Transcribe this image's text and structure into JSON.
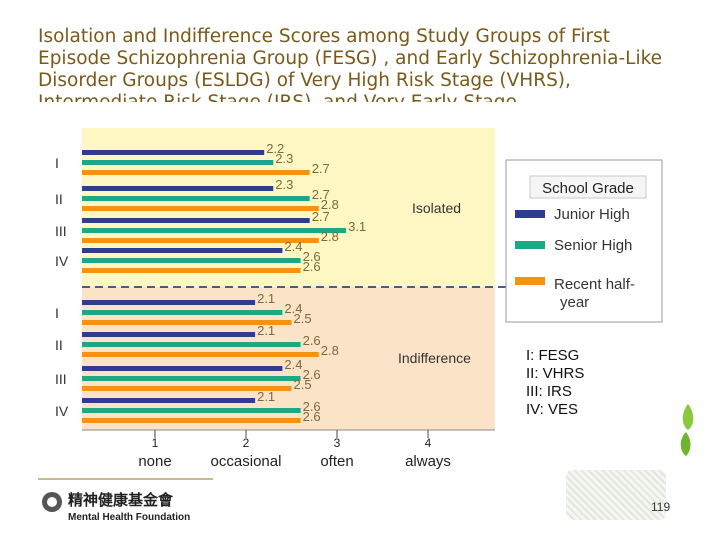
{
  "title": {
    "text": "Isolation and Indifference Scores among Study Groups of First Episode Schizophrenia Group (FESG) , and Early Schizophrenia-Like Disorder Groups (ESLDG) of Very High Risk Stage (VHRS), Intermediate Risk Stage (IRS), and Very Early Stage"
  },
  "footer": {
    "logo_text": "精神健康基金會",
    "logo_subtext": "Mental Health Foundation",
    "page_number": "119"
  },
  "colors": {
    "junior": "#2e3d8f",
    "senior": "#1aa887",
    "recent": "#f5920f",
    "isolated_bg": "#fef7c4",
    "indifference_bg": "#fbe3c8",
    "value_label": "#7a6a3a"
  },
  "chart_data": {
    "type": "bar",
    "orientation": "horizontal",
    "xlim": [
      0,
      4
    ],
    "xticks": [
      {
        "value": 1,
        "label": "1",
        "sublabel": "none"
      },
      {
        "value": 2,
        "label": "2",
        "sublabel": "occasional"
      },
      {
        "value": 3,
        "label": "3",
        "sublabel": "often"
      },
      {
        "value": 4,
        "label": "4",
        "sublabel": "always"
      }
    ],
    "legend": {
      "title": "School Grade",
      "placement": "right",
      "entries": [
        {
          "label": "Junior High",
          "color": "#2e3d8f"
        },
        {
          "label": "Senior High",
          "color": "#1aa887"
        },
        {
          "label": "Recent half-year",
          "color": "#f5920f"
        }
      ]
    },
    "group_legend": [
      "I: FESG",
      "II: VHRS",
      "III: IRS",
      "IV: VES"
    ],
    "panels": [
      {
        "name": "Isolated",
        "categories": [
          "I",
          "II",
          "III",
          "IV"
        ],
        "series": [
          {
            "name": "Junior High",
            "values": [
              2.2,
              2.3,
              2.7,
              2.4
            ]
          },
          {
            "name": "Senior High",
            "values": [
              2.3,
              2.7,
              3.1,
              2.6
            ]
          },
          {
            "name": "Recent half-year",
            "values": [
              2.7,
              2.8,
              2.8,
              2.6
            ]
          }
        ]
      },
      {
        "name": "Indifference",
        "categories": [
          "I",
          "II",
          "III",
          "IV"
        ],
        "series": [
          {
            "name": "Junior High",
            "values": [
              2.1,
              2.1,
              2.4,
              2.1
            ]
          },
          {
            "name": "Senior High",
            "values": [
              2.4,
              2.6,
              2.6,
              2.6
            ]
          },
          {
            "name": "Recent half-year",
            "values": [
              2.5,
              2.8,
              2.5,
              2.6
            ]
          }
        ]
      }
    ]
  }
}
